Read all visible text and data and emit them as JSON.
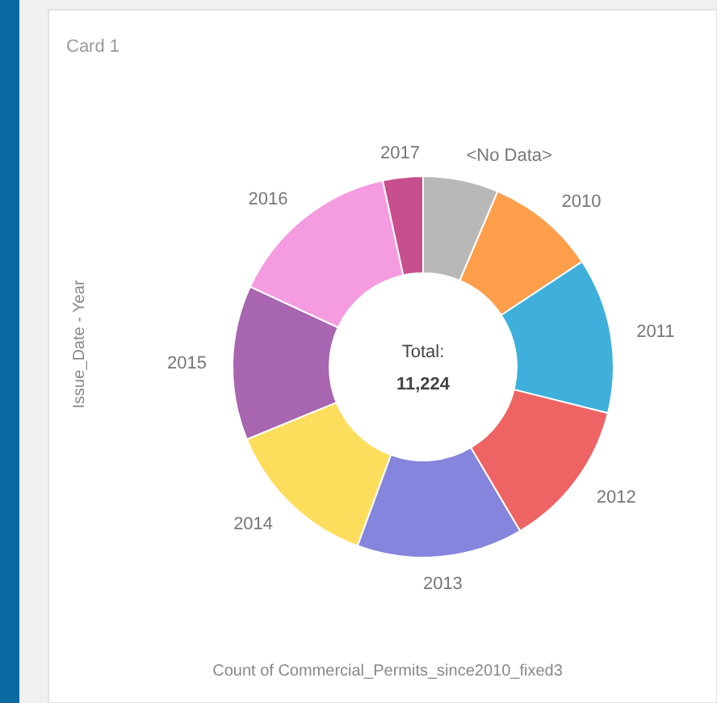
{
  "chart_data": {
    "type": "donut",
    "title": "Card 1",
    "xlabel": "Count of Commercial_Permits_since2010_fixed3",
    "ylabel": "Issue_Date - Year",
    "categories": [
      "<No Data>",
      "2010",
      "2011",
      "2012",
      "2013",
      "2014",
      "2015",
      "2016",
      "2017"
    ],
    "values": [
      6.4,
      9.3,
      13.2,
      12.6,
      14.1,
      13.2,
      13.1,
      14.7,
      3.4
    ],
    "colors": [
      "#b8b8b8",
      "#fd9e4b",
      "#3fb0dc",
      "#ee6363",
      "#8585dd",
      "#fddd5c",
      "#a865b0",
      "#f59ce0",
      "#c84f8d"
    ],
    "annotations": [
      "Total:",
      "11,224"
    ]
  }
}
